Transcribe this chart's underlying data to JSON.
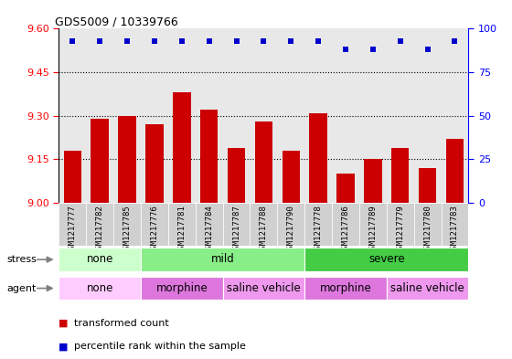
{
  "title": "GDS5009 / 10339766",
  "samples": [
    "GSM1217777",
    "GSM1217782",
    "GSM1217785",
    "GSM1217776",
    "GSM1217781",
    "GSM1217784",
    "GSM1217787",
    "GSM1217788",
    "GSM1217790",
    "GSM1217778",
    "GSM1217786",
    "GSM1217789",
    "GSM1217779",
    "GSM1217780",
    "GSM1217783"
  ],
  "transformed_counts": [
    9.18,
    9.29,
    9.3,
    9.27,
    9.38,
    9.32,
    9.19,
    9.28,
    9.18,
    9.31,
    9.1,
    9.15,
    9.19,
    9.12,
    9.22
  ],
  "percentile_ranks": [
    93,
    93,
    93,
    93,
    93,
    93,
    93,
    93,
    93,
    93,
    88,
    88,
    93,
    88,
    93
  ],
  "ylim_left": [
    9.0,
    9.6
  ],
  "ylim_right": [
    0,
    100
  ],
  "yticks_left": [
    9.0,
    9.15,
    9.3,
    9.45,
    9.6
  ],
  "yticks_right": [
    0,
    25,
    50,
    75,
    100
  ],
  "bar_color": "#cc0000",
  "dot_color": "#0000cc",
  "stress_groups": [
    {
      "label": "none",
      "start": 0,
      "end": 3,
      "color": "#ccffcc"
    },
    {
      "label": "mild",
      "start": 3,
      "end": 9,
      "color": "#88ee88"
    },
    {
      "label": "severe",
      "start": 9,
      "end": 15,
      "color": "#44cc44"
    }
  ],
  "agent_groups": [
    {
      "label": "none",
      "start": 0,
      "end": 3,
      "color": "#ffccff"
    },
    {
      "label": "morphine",
      "start": 3,
      "end": 6,
      "color": "#dd77dd"
    },
    {
      "label": "saline vehicle",
      "start": 6,
      "end": 9,
      "color": "#ee99ee"
    },
    {
      "label": "morphine",
      "start": 9,
      "end": 12,
      "color": "#dd77dd"
    },
    {
      "label": "saline vehicle",
      "start": 12,
      "end": 15,
      "color": "#ee99ee"
    }
  ],
  "stress_label": "stress",
  "agent_label": "agent",
  "legend_items": [
    {
      "color": "#cc0000",
      "label": "transformed count"
    },
    {
      "color": "#0000cc",
      "label": "percentile rank within the sample"
    }
  ],
  "bar_bottom": 9.0,
  "plot_bg": "#e8e8e8",
  "tick_area_bg": "#d0d0d0"
}
